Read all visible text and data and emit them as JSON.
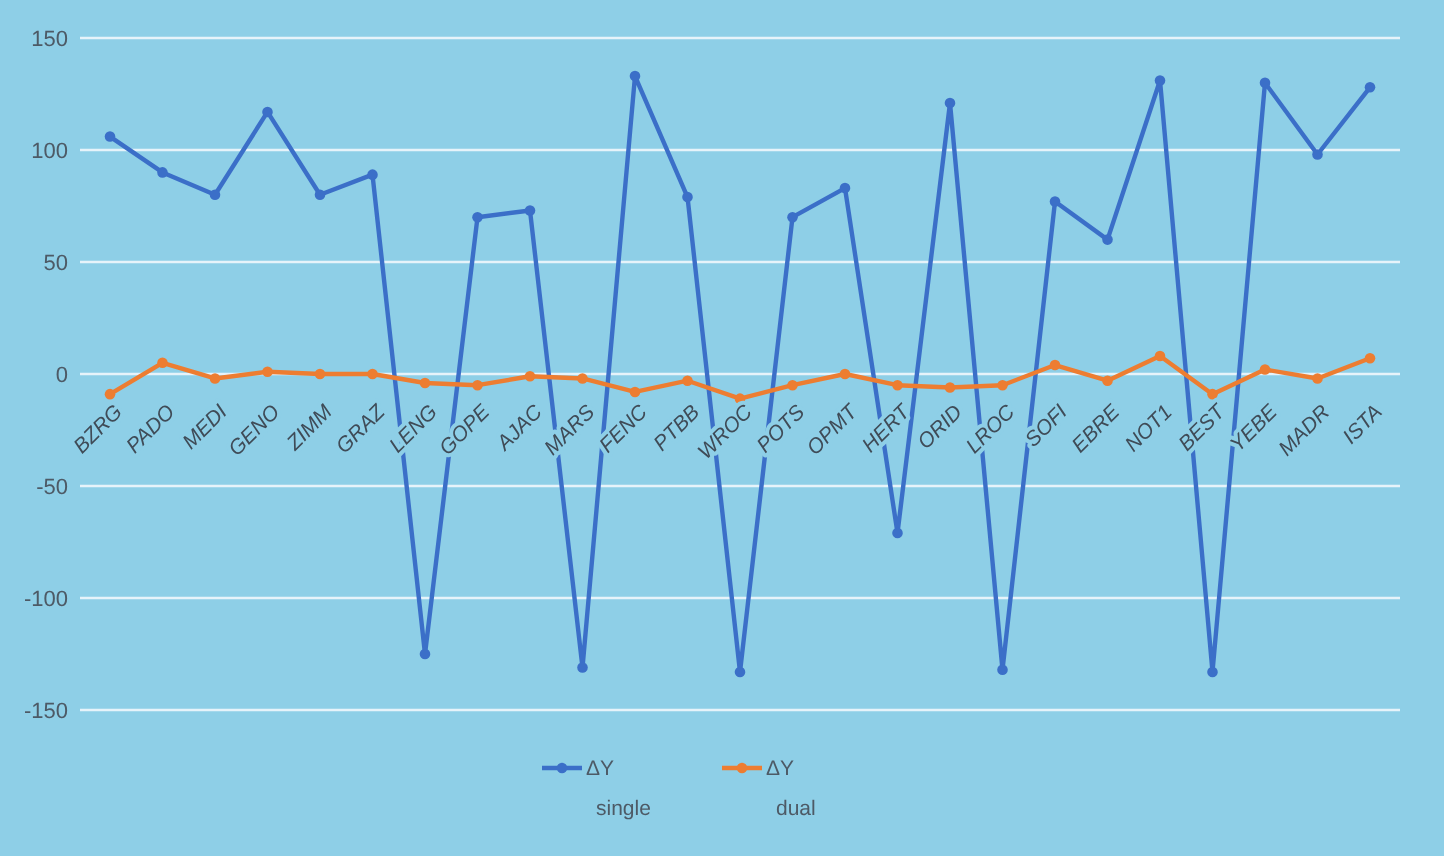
{
  "chart_data": {
    "type": "line",
    "categories": [
      "BZRG",
      "PADO",
      "MEDI",
      "GENO",
      "ZIMM",
      "GRAZ",
      "LENG",
      "GOPE",
      "AJAC",
      "MARS",
      "FENC",
      "PTBB",
      "WROC",
      "POTS",
      "OPMT",
      "HERT",
      "ORID",
      "LROC",
      "SOFI",
      "EBRE",
      "NOT1",
      "BEST",
      "YEBE",
      "MADR",
      "ISTA"
    ],
    "series": [
      {
        "name": "ΔY single",
        "color": "#3b6fc8",
        "values": [
          106,
          90,
          80,
          117,
          80,
          89,
          -125,
          70,
          73,
          -131,
          133,
          79,
          -133,
          70,
          83,
          -71,
          121,
          -132,
          77,
          60,
          131,
          -133,
          130,
          98,
          128
        ]
      },
      {
        "name": "ΔY dual",
        "color": "#ed7d31",
        "values": [
          -9,
          5,
          -2,
          1,
          0,
          0,
          -4,
          -5,
          -1,
          -2,
          -8,
          -3,
          -11,
          -5,
          0,
          -5,
          -6,
          -5,
          4,
          -3,
          8,
          -9,
          2,
          -2,
          7
        ]
      }
    ],
    "ylim": [
      -150,
      150
    ],
    "yticks": [
      -150,
      -100,
      -50,
      0,
      50,
      100,
      150
    ],
    "grid": "y",
    "legend": "bottom",
    "marker": "circle",
    "line_style": "solid"
  }
}
